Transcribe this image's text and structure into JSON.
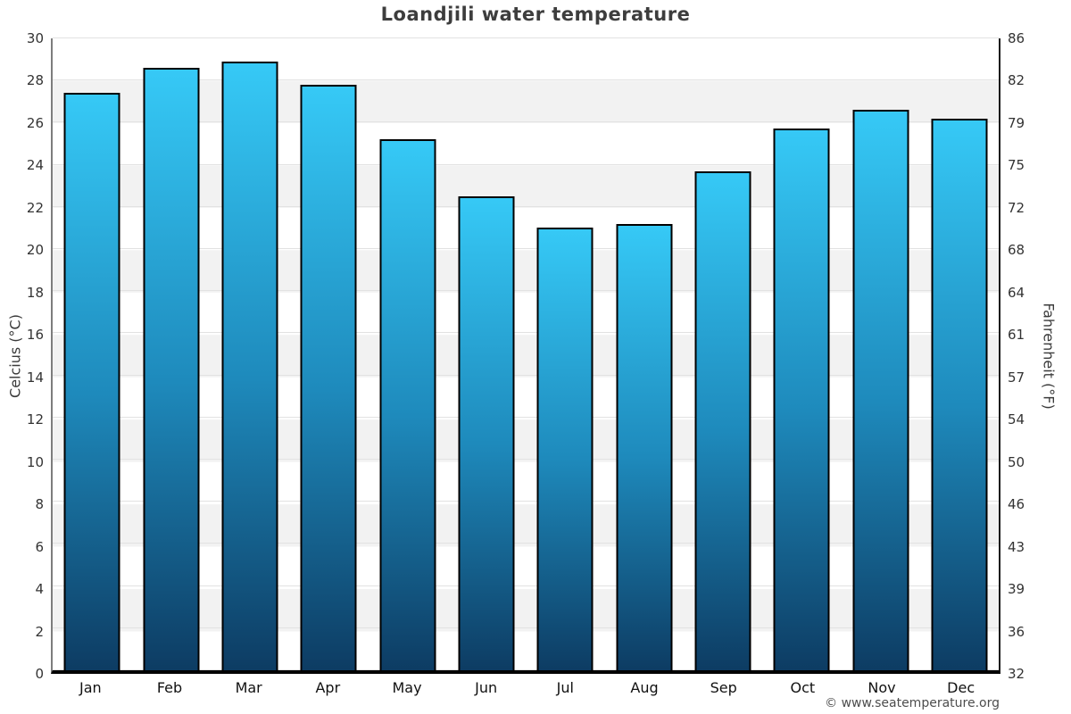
{
  "title": "Loandjili water temperature",
  "footer": {
    "credit": "© www.seatemperature.org"
  },
  "axes": {
    "left_title": "Celcius (°C)",
    "right_title": "Fahrenheit (°F)"
  },
  "chart_data": {
    "type": "bar",
    "title": "Loandjili water temperature",
    "categories": [
      "Jan",
      "Feb",
      "Mar",
      "Apr",
      "May",
      "Jun",
      "Jul",
      "Aug",
      "Sep",
      "Oct",
      "Nov",
      "Dec"
    ],
    "values": [
      27.4,
      28.6,
      28.9,
      27.8,
      25.2,
      22.5,
      21.0,
      21.2,
      23.7,
      25.7,
      26.6,
      26.2
    ],
    "xlabel": "",
    "ylabel_left": "Celcius (°C)",
    "ylabel_right": "Fahrenheit (°F)",
    "ylim": [
      0,
      30
    ],
    "yticks_celsius": [
      30,
      28,
      26,
      24,
      22,
      20,
      18,
      16,
      14,
      12,
      10,
      8,
      6,
      4,
      2,
      0
    ],
    "yticks_fahrenheit": [
      86,
      82,
      79,
      75,
      72,
      68,
      64,
      61,
      57,
      54,
      50,
      46,
      43,
      39,
      36,
      32
    ],
    "grid": "on",
    "legend": "none",
    "band_colors": [
      "#ffffff",
      "#f2f2f2"
    ],
    "bar_gradient_top": "#36c9f6",
    "bar_gradient_mid": "#1e8abc",
    "bar_gradient_bottom": "#0d3c63",
    "bar_border_color": "#000000",
    "watermark": "© www.seatemperature.org"
  }
}
